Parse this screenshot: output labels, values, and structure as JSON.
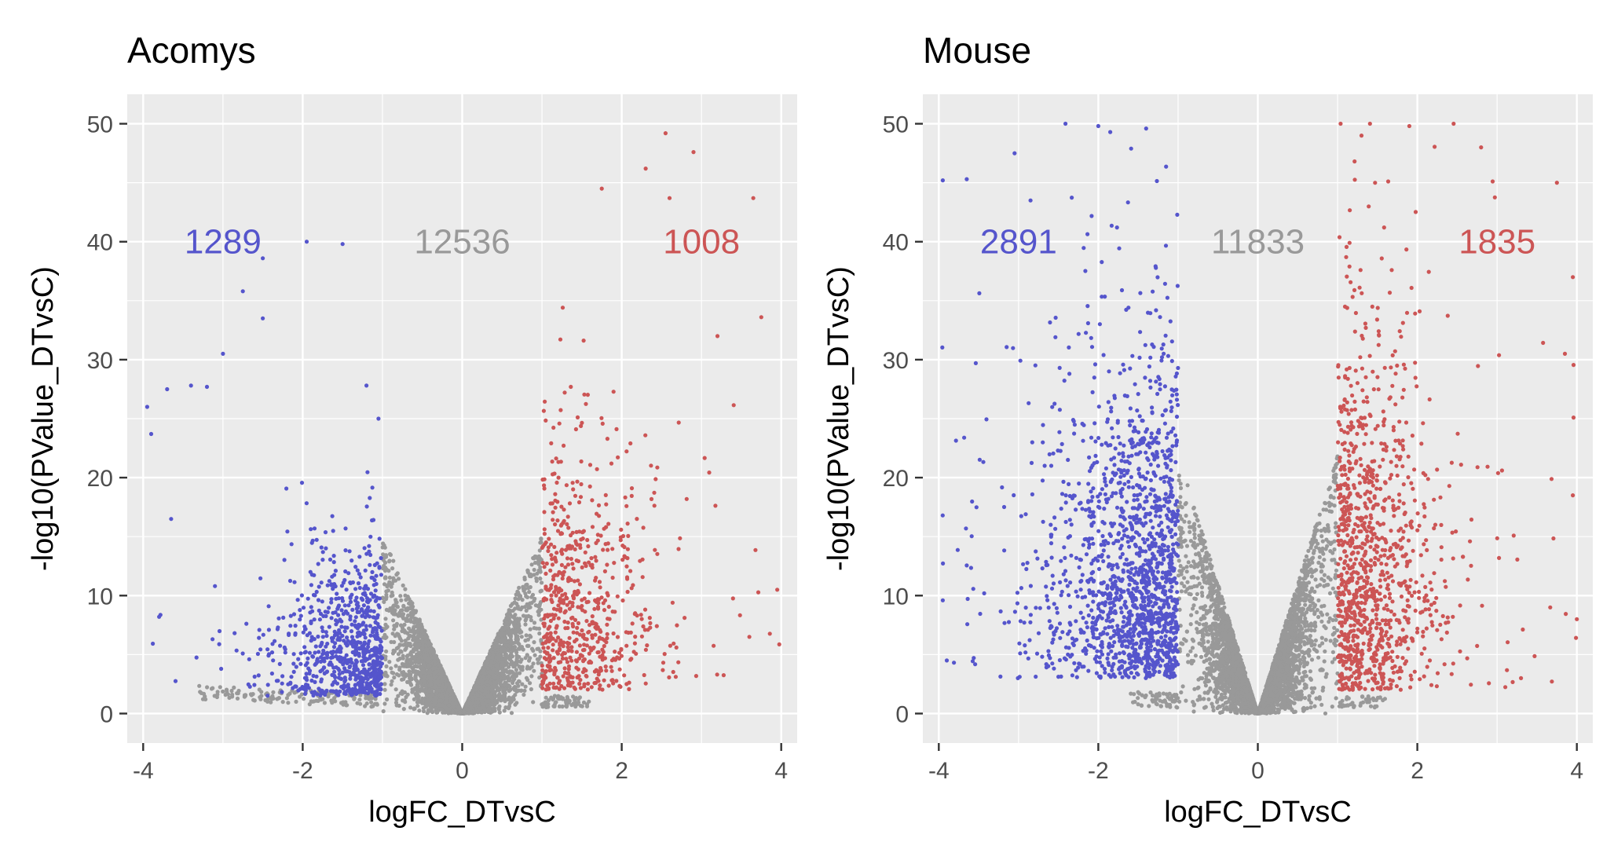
{
  "chart_data": [
    {
      "type": "scatter",
      "title": "Acomys",
      "xlabel": "logFC_DTvsC",
      "ylabel": "-log10(PValue_DTvsC)",
      "xlim": [
        -4.2,
        4.2
      ],
      "ylim": [
        -2.5,
        52.5
      ],
      "xticks": [
        -4,
        -2,
        0,
        2,
        4
      ],
      "yticks": [
        0,
        10,
        20,
        30,
        40,
        50
      ],
      "grid": true,
      "background": "#EBEBEB",
      "colors": {
        "down": "#5555CC",
        "ns": "#999999",
        "up": "#CC5555"
      },
      "annotations": [
        {
          "text": "1289",
          "x": -3.0,
          "y": 40,
          "group": "down"
        },
        {
          "text": "12536",
          "x": 0.0,
          "y": 40,
          "group": "ns"
        },
        {
          "text": "1008",
          "x": 3.0,
          "y": 40,
          "group": "up"
        }
      ],
      "counts": {
        "down": 1289,
        "ns": 12536,
        "up": 1008
      },
      "highlight_points": [
        {
          "x": -3.95,
          "y": 26.0
        },
        {
          "x": -3.9,
          "y": 23.7
        },
        {
          "x": -3.8,
          "y": 8.2
        },
        {
          "x": -3.7,
          "y": 27.5
        },
        {
          "x": -3.65,
          "y": 16.5
        },
        {
          "x": -3.4,
          "y": 27.8
        },
        {
          "x": -3.2,
          "y": 27.7
        },
        {
          "x": -3.0,
          "y": 30.5
        },
        {
          "x": -2.75,
          "y": 35.8
        },
        {
          "x": -2.5,
          "y": 38.6
        },
        {
          "x": -2.5,
          "y": 33.5
        },
        {
          "x": -1.95,
          "y": 40.0
        },
        {
          "x": -1.5,
          "y": 39.8
        },
        {
          "x": -1.2,
          "y": 27.8
        },
        {
          "x": -1.05,
          "y": 25.0
        },
        {
          "x": 2.55,
          "y": 49.2
        },
        {
          "x": 2.3,
          "y": 46.2
        },
        {
          "x": 2.9,
          "y": 47.6
        },
        {
          "x": 3.65,
          "y": 43.7
        },
        {
          "x": 1.75,
          "y": 44.5
        },
        {
          "x": 2.6,
          "y": 43.7
        },
        {
          "x": 3.75,
          "y": 33.6
        },
        {
          "x": 3.95,
          "y": 10.5
        },
        {
          "x": 3.2,
          "y": 32.0
        },
        {
          "x": 3.6,
          "y": 6.5
        }
      ]
    },
    {
      "type": "scatter",
      "title": "Mouse",
      "xlabel": "logFC_DTvsC",
      "ylabel": "-log10(PValue_DTvsC)",
      "xlim": [
        -4.2,
        4.2
      ],
      "ylim": [
        -2.5,
        52.5
      ],
      "xticks": [
        -4,
        -2,
        0,
        2,
        4
      ],
      "yticks": [
        0,
        10,
        20,
        30,
        40,
        50
      ],
      "grid": true,
      "background": "#EBEBEB",
      "colors": {
        "down": "#5555CC",
        "ns": "#999999",
        "up": "#CC5555"
      },
      "annotations": [
        {
          "text": "2891",
          "x": -3.0,
          "y": 40,
          "group": "down"
        },
        {
          "text": "11833",
          "x": 0.0,
          "y": 40,
          "group": "ns"
        },
        {
          "text": "1835",
          "x": 3.0,
          "y": 40,
          "group": "up"
        }
      ],
      "counts": {
        "down": 2891,
        "ns": 11833,
        "up": 1835
      },
      "highlight_points": [
        {
          "x": -3.95,
          "y": 45.2
        },
        {
          "x": -3.65,
          "y": 45.3
        },
        {
          "x": -3.05,
          "y": 47.5
        },
        {
          "x": -2.85,
          "y": 43.5
        },
        {
          "x": -2.0,
          "y": 49.8
        },
        {
          "x": -1.85,
          "y": 49.3
        },
        {
          "x": -1.4,
          "y": 49.6
        },
        {
          "x": -3.9,
          "y": 4.5
        },
        {
          "x": -3.95,
          "y": 9.6
        },
        {
          "x": 1.3,
          "y": 49.0
        },
        {
          "x": 1.9,
          "y": 49.8
        },
        {
          "x": 2.8,
          "y": 48.0
        },
        {
          "x": 3.75,
          "y": 45.0
        },
        {
          "x": 3.95,
          "y": 37.0
        },
        {
          "x": 3.95,
          "y": 18.5
        },
        {
          "x": 4.0,
          "y": 8.0
        },
        {
          "x": 3.85,
          "y": 30.5
        },
        {
          "x": 3.3,
          "y": 3.0
        }
      ]
    }
  ]
}
